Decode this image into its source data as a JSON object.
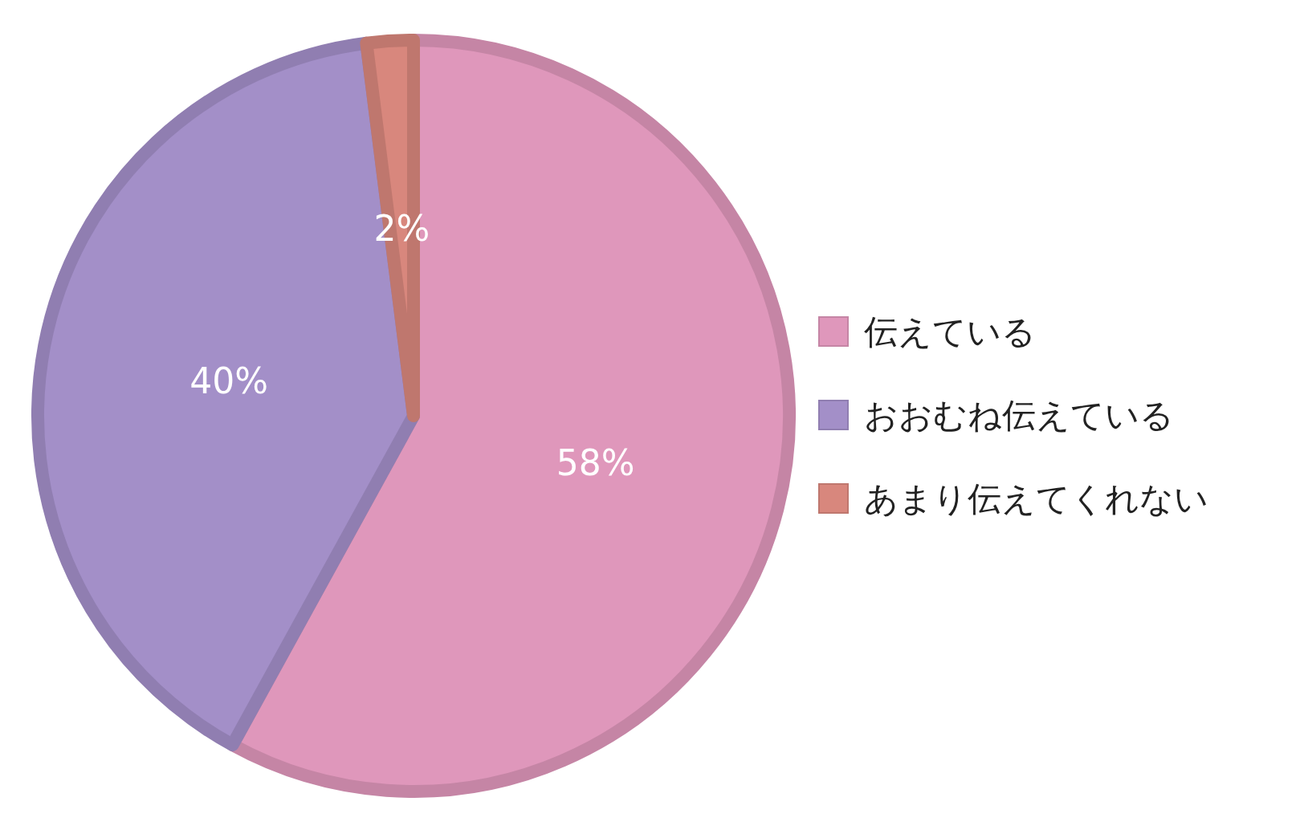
{
  "chart_data": {
    "type": "pie",
    "categories": [
      "伝えている",
      "おおむね伝えている",
      "あまり伝えてくれない"
    ],
    "values": [
      58,
      40,
      2
    ],
    "colors": [
      "#df97bb",
      "#a38fc8",
      "#d8877d"
    ],
    "value_labels": [
      "58%",
      "40%",
      "2%"
    ],
    "legend": "right"
  }
}
